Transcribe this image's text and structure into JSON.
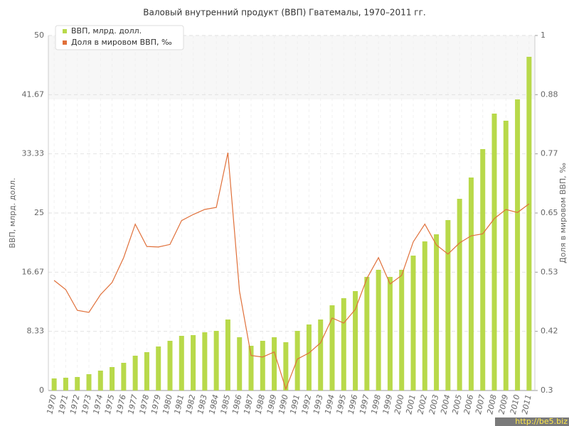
{
  "chart_data": {
    "type": "bar",
    "title": "Валовый внутренний продукт (ВВП) Гватемалы, 1970–2011 гг.",
    "y_label": "ВВП, млрд. долл.",
    "y2_label": "Доля в мировом ВВП, ‰",
    "watermark": "http://be5.biz",
    "categories": [
      "1970",
      "1971",
      "1972",
      "1973",
      "1974",
      "1975",
      "1976",
      "1977",
      "1978",
      "1979",
      "1980",
      "1981",
      "1982",
      "1983",
      "1984",
      "1985",
      "1986",
      "1987",
      "1988",
      "1989",
      "1990",
      "1991",
      "1992",
      "1993",
      "1994",
      "1995",
      "1996",
      "1997",
      "1998",
      "1999",
      "2000",
      "2001",
      "2002",
      "2003",
      "2004",
      "2005",
      "2006",
      "2007",
      "2008",
      "2009",
      "2010",
      "2011"
    ],
    "series": [
      {
        "name": "ВВП, млрд. долл.",
        "type": "bar",
        "color": "#b8d94a",
        "values": [
          1.7,
          1.8,
          1.9,
          2.3,
          2.8,
          3.3,
          3.9,
          4.9,
          5.4,
          6.2,
          7.0,
          7.7,
          7.8,
          8.2,
          8.4,
          10.0,
          7.5,
          6.3,
          7.0,
          7.5,
          6.8,
          8.4,
          9.3,
          10.0,
          12.0,
          13.0,
          14.0,
          16.0,
          17.0,
          16.0,
          17.0,
          19.0,
          21.0,
          22.0,
          24.0,
          27.0,
          30.0,
          34.0,
          39.0,
          38.0,
          41.0,
          47.0
        ]
      },
      {
        "name": "Доля в мировом ВВП, ‰",
        "type": "line",
        "axis": "y2",
        "color": "#e0703a",
        "values": [
          0.517,
          0.499,
          0.458,
          0.454,
          0.489,
          0.513,
          0.562,
          0.628,
          0.584,
          0.583,
          0.588,
          0.635,
          0.647,
          0.657,
          0.661,
          0.769,
          0.496,
          0.369,
          0.366,
          0.376,
          0.303,
          0.362,
          0.374,
          0.394,
          0.443,
          0.433,
          0.46,
          0.521,
          0.562,
          0.51,
          0.527,
          0.593,
          0.628,
          0.587,
          0.569,
          0.591,
          0.605,
          0.609,
          0.639,
          0.657,
          0.651,
          0.668
        ]
      }
    ],
    "ylim": [
      0,
      50
    ],
    "yticks": [
      0,
      {
        "value": 8.3333,
        "label": "8.33"
      },
      {
        "value": 16.6667,
        "label": "16.67"
      },
      25,
      {
        "value": 33.3333,
        "label": "33.33"
      },
      {
        "value": 41.6667,
        "label": "41.67"
      },
      50
    ],
    "y2lim": [
      0.3,
      1
    ],
    "y2ticks": [
      0.3,
      {
        "value": 0.4167,
        "label": "0.42"
      },
      {
        "value": 0.5333,
        "label": "0.53"
      },
      0.65,
      {
        "value": 0.7667,
        "label": "0.77"
      },
      {
        "value": 0.8833,
        "label": "0.88"
      },
      1
    ],
    "grid": true
  }
}
